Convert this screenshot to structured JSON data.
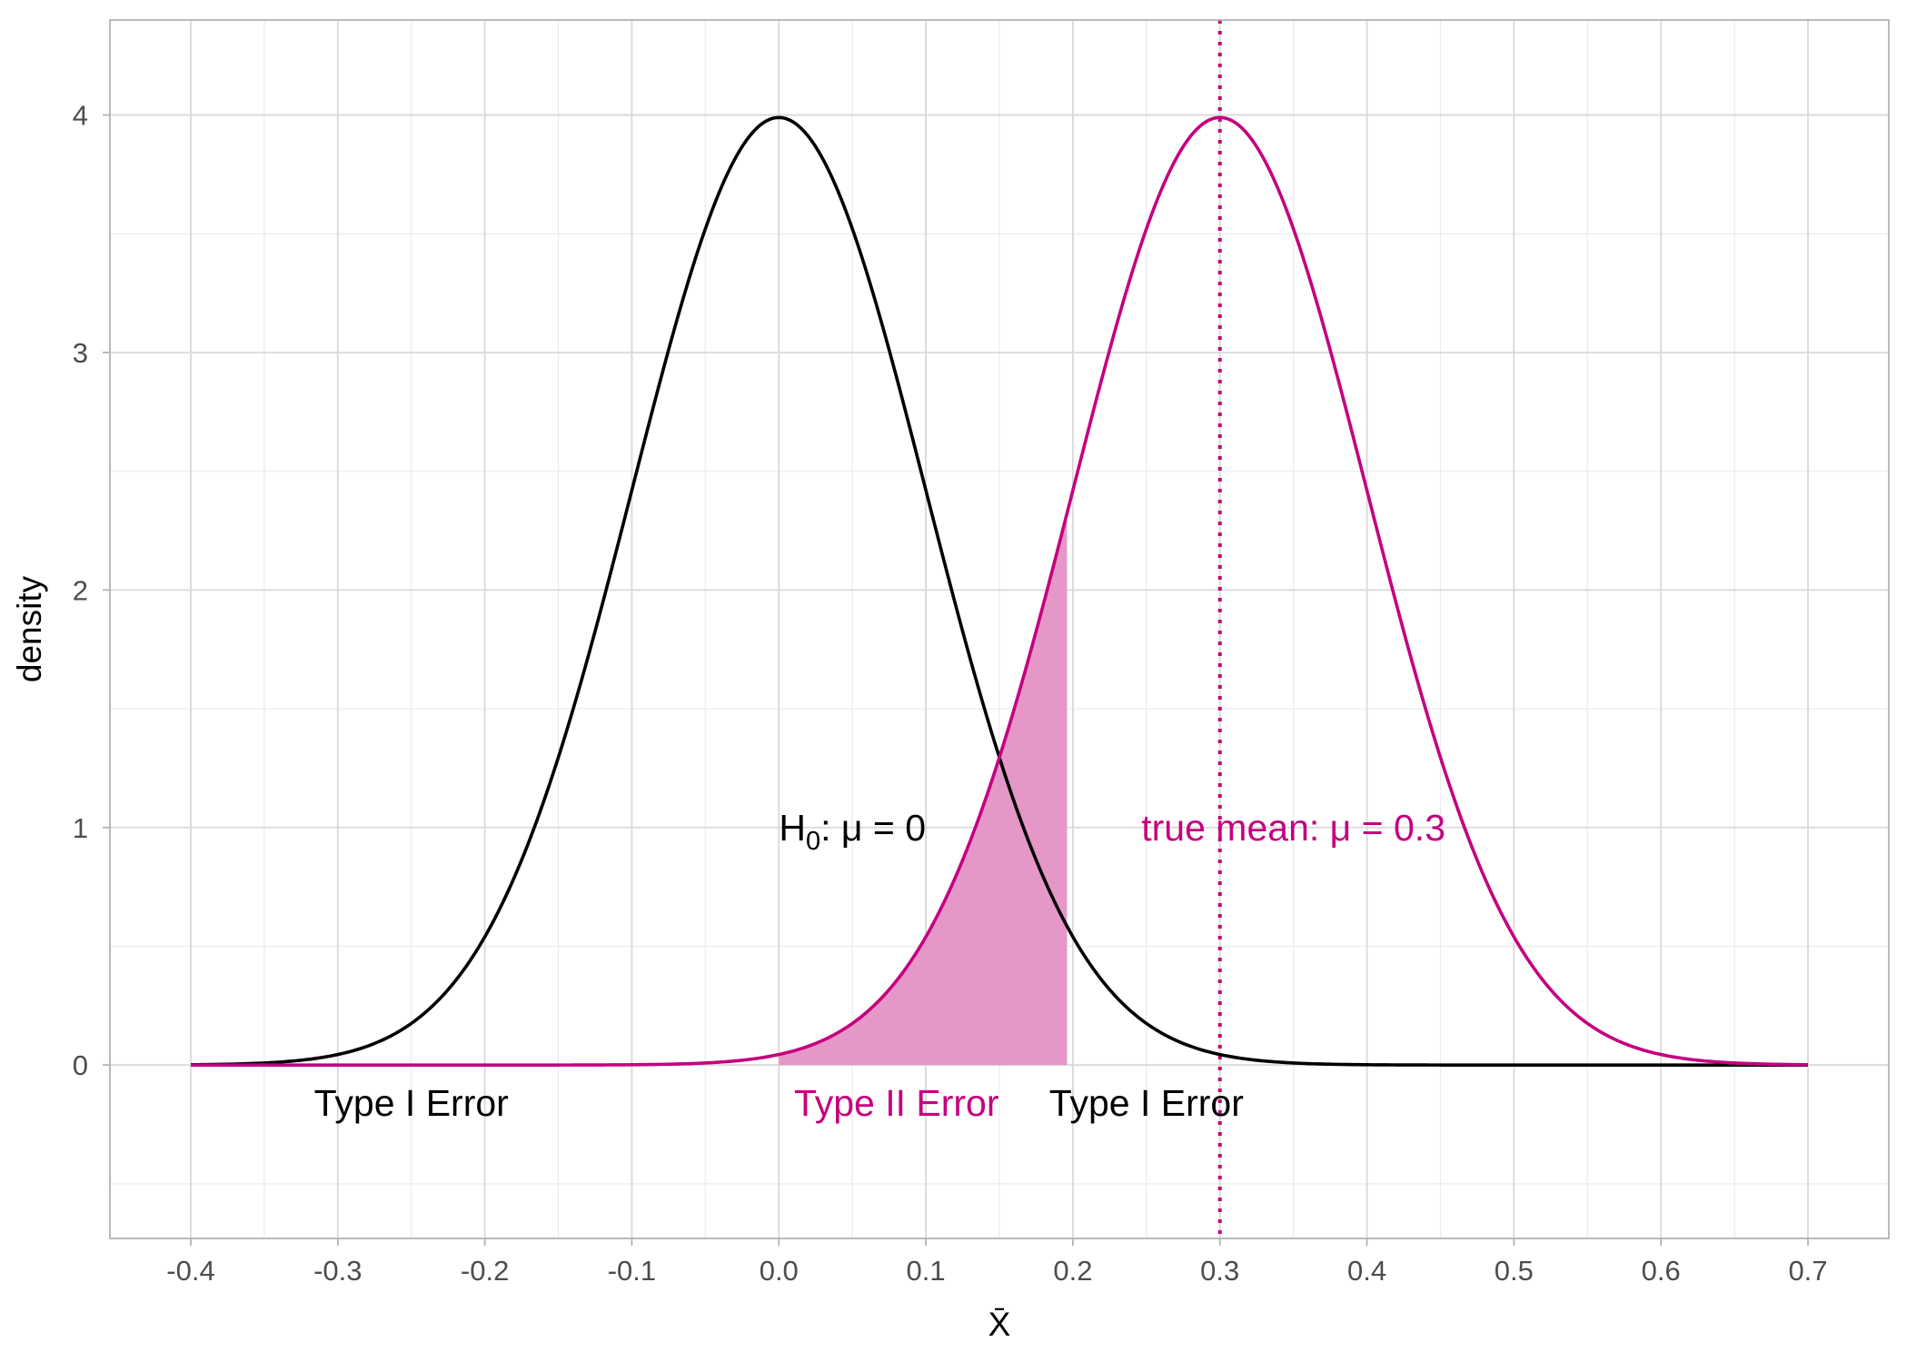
{
  "chart_data": {
    "type": "line",
    "xlabel": "X̄",
    "ylabel": "density",
    "xlim": [
      -0.455,
      0.755
    ],
    "ylim": [
      -0.73,
      4.4
    ],
    "x_ticks": [
      "-0.4",
      "-0.3",
      "-0.2",
      "-0.1",
      "0.0",
      "0.1",
      "0.2",
      "0.3",
      "0.4",
      "0.5",
      "0.6",
      "0.7"
    ],
    "y_ticks": [
      "0",
      "1",
      "2",
      "3",
      "4"
    ],
    "grid": true,
    "curve_range": [
      -0.4,
      0.7
    ],
    "series": [
      {
        "distribution": "normal",
        "mean": 0.0,
        "sd": 0.1,
        "color": "#000000"
      },
      {
        "distribution": "normal",
        "mean": 0.3,
        "sd": 0.1,
        "color": "#C4007F"
      }
    ],
    "shaded_region": {
      "series_index": 1,
      "from": 0.0,
      "to": 0.196,
      "color": "#E597C8"
    },
    "vline": {
      "x": 0.3,
      "style": "dotted",
      "color": "#C4007F"
    },
    "annotations": {
      "h0": {
        "prefix": "H",
        "sub": "0",
        "suffix": ":  μ = 0",
        "x": 0.05,
        "y": 1.0,
        "color": "#000000"
      },
      "true_mean": {
        "text": "true mean: μ = 0.3",
        "x": 0.35,
        "y": 1.0,
        "color": "#C4007F"
      },
      "type1_left": {
        "text": "Type I Error",
        "x": -0.25,
        "y": -0.16,
        "color": "#000000"
      },
      "type2": {
        "text": "Type II Error",
        "x": 0.08,
        "y": -0.16,
        "color": "#C4007F"
      },
      "type1_right": {
        "text": "Type I Error",
        "x": 0.25,
        "y": -0.16,
        "color": "#000000"
      }
    }
  }
}
